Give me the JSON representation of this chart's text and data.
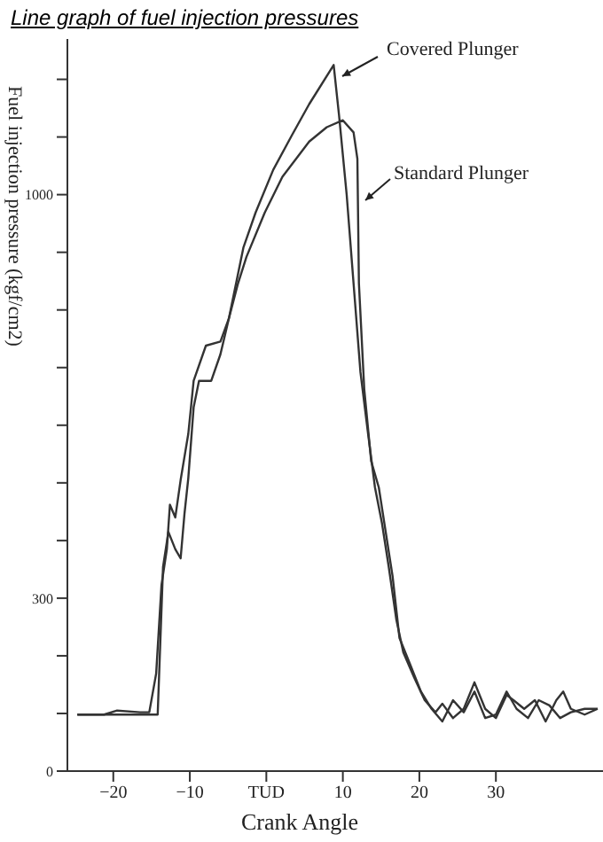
{
  "chart_data": {
    "type": "line",
    "title": "Line graph of fuel injection pressures",
    "xlabel": "Crank Angle",
    "ylabel": "Fuel injection pressure (kgf/cm2)",
    "xlim": [
      -26,
      44
    ],
    "xticks": [
      {
        "value": -20,
        "label": "−20"
      },
      {
        "value": -10,
        "label": "−10"
      },
      {
        "value": 0,
        "label": "TUD"
      },
      10,
      20,
      30
    ],
    "ylim": [
      0,
      1270
    ],
    "yticks": [
      0,
      {
        "value": 100,
        "label": null
      },
      {
        "value": 200,
        "label": null
      },
      300,
      {
        "value": 400,
        "label": null
      },
      {
        "value": 500,
        "label": null
      },
      {
        "value": 600,
        "label": null
      },
      {
        "value": 700,
        "label": null
      },
      {
        "value": 800,
        "label": null
      },
      {
        "value": 900,
        "label": null
      },
      1000,
      {
        "value": 1100,
        "label": null
      },
      {
        "value": 1200,
        "label": null
      }
    ],
    "grid": false,
    "legend": false,
    "marker": "none",
    "line_style": "solid",
    "series": [
      {
        "name": "Covered Plunger",
        "color": "#333333",
        "x": [
          -24.7,
          -21.2,
          -19.5,
          -16.5,
          -15.3,
          -14.4,
          -13.7,
          -13.0,
          -12.6,
          -11.9,
          -11.2,
          -10.2,
          -9.5,
          -7.9,
          -6.0,
          -4.9,
          -3.0,
          -1.4,
          0.9,
          3.3,
          5.6,
          8.8,
          9.5,
          10.5,
          11.4,
          12.3,
          13.3,
          14.2,
          15.1,
          16.0,
          17.0,
          17.9,
          19.3,
          20.7,
          22.1,
          23.0,
          24.4,
          25.8,
          27.2,
          28.6,
          30.0,
          31.4,
          32.3,
          33.7,
          35.1,
          36.5,
          37.9,
          38.8,
          39.8,
          41.6,
          43.3
        ],
        "values": [
          98,
          98,
          105,
          102,
          102,
          169,
          323,
          385,
          462,
          440,
          505,
          585,
          677,
          738,
          745,
          785,
          908,
          969,
          1043,
          1102,
          1157,
          1225,
          1138,
          1000,
          846,
          692,
          585,
          492,
          431,
          354,
          262,
          206,
          163,
          123,
          102,
          117,
          92,
          108,
          154,
          108,
          92,
          132,
          123,
          108,
          123,
          86,
          123,
          138,
          108,
          98,
          108
        ]
      },
      {
        "name": "Standard Plunger",
        "color": "#333333",
        "x": [
          -24.7,
          -21.2,
          -16.5,
          -14.2,
          -13.5,
          -12.8,
          -11.9,
          -11.2,
          -10.7,
          -10.2,
          -9.5,
          -8.8,
          -7.2,
          -6.0,
          -4.9,
          -3.7,
          -2.6,
          -0.2,
          2.1,
          5.6,
          7.9,
          10.0,
          11.4,
          11.9,
          12.1,
          12.8,
          13.7,
          14.7,
          15.6,
          16.5,
          17.4,
          18.8,
          20.2,
          21.6,
          23.0,
          24.4,
          25.8,
          27.2,
          28.6,
          30.0,
          31.4,
          32.7,
          34.2,
          35.6,
          37.0,
          38.4,
          39.8,
          41.6,
          43.3
        ],
        "values": [
          98,
          98,
          98,
          98,
          354,
          415,
          385,
          369,
          446,
          508,
          631,
          677,
          677,
          723,
          785,
          846,
          892,
          969,
          1031,
          1092,
          1117,
          1129,
          1108,
          1062,
          846,
          662,
          538,
          492,
          415,
          338,
          231,
          185,
          138,
          108,
          86,
          123,
          102,
          138,
          92,
          98,
          138,
          108,
          92,
          123,
          114,
          92,
          102,
          108,
          108
        ]
      }
    ]
  }
}
